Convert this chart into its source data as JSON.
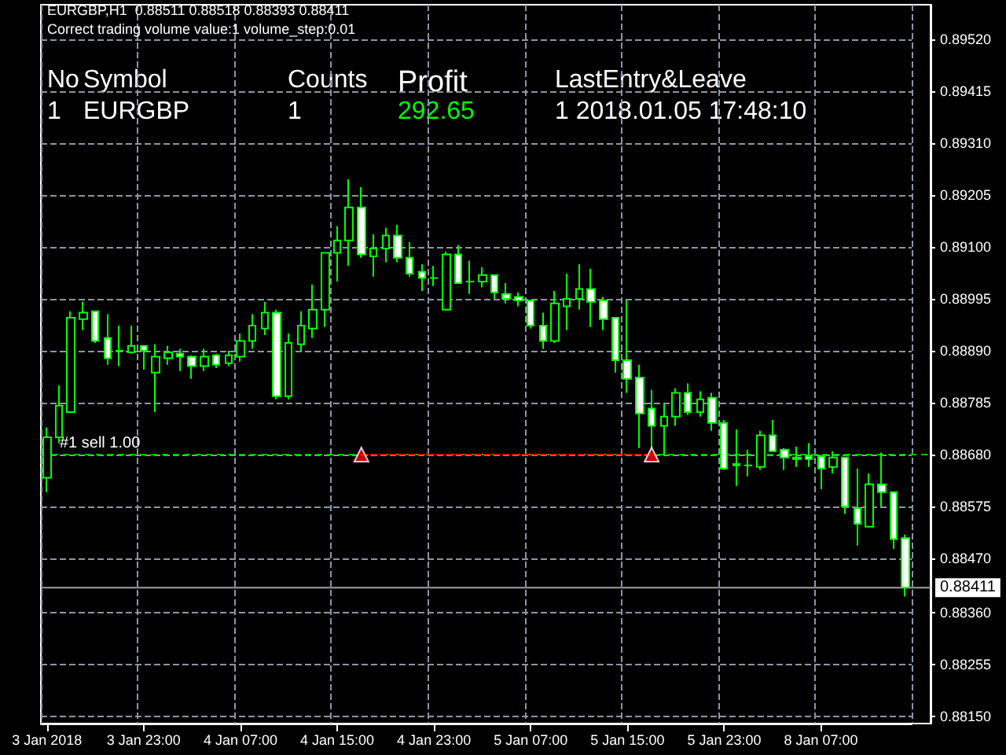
{
  "chart_data": {
    "type": "candlestick",
    "title": "EURGBP,H1  0.88511 0.88518 0.88393 0.88411",
    "subtitle": "Correct trading volume value:1 volume_step:0.01",
    "annotations": [
      "No",
      "Symbol",
      "Counts",
      "Profit",
      "LastEntry&Leave",
      "1",
      "EURGBP",
      "1",
      "292.65",
      "1 2018.01.05 17:48:10"
    ],
    "categories": [
      "3 Jan 2018",
      null,
      null,
      null,
      null,
      null,
      null,
      null,
      "3 Jan 23:00",
      null,
      null,
      null,
      null,
      null,
      null,
      null,
      "4 Jan 07:00",
      null,
      null,
      null,
      null,
      null,
      null,
      null,
      "4 Jan 15:00",
      null,
      null,
      null,
      null,
      null,
      null,
      null,
      "4 Jan 23:00",
      null,
      null,
      null,
      null,
      null,
      null,
      null,
      "5 Jan 07:00",
      null,
      null,
      null,
      null,
      null,
      null,
      null,
      "5 Jan 15:00",
      null,
      null,
      null,
      null,
      null,
      null,
      null,
      "5 Jan 23:00",
      null,
      null,
      null,
      null,
      null,
      null,
      null,
      "8 Jan 07:00",
      null,
      null,
      null,
      null,
      null,
      null,
      null
    ],
    "series": [
      {
        "type": "candlestick",
        "color": "#00ff00",
        "ohlc": [
          [
            0.88633,
            0.88735,
            0.88604,
            0.88715
          ],
          [
            0.88715,
            0.8882,
            0.88703,
            0.88779
          ],
          [
            0.88766,
            0.8897,
            0.88766,
            0.88957
          ],
          [
            0.88954,
            0.88989,
            0.88932,
            0.88967
          ],
          [
            0.8897,
            0.8897,
            0.88906,
            0.8891
          ],
          [
            0.88916,
            0.88964,
            0.88862,
            0.88875
          ],
          [
            0.8889,
            0.88941,
            0.88859,
            0.8889
          ],
          [
            0.88887,
            0.88941,
            0.88884,
            0.889
          ],
          [
            0.889,
            0.889,
            0.88852,
            0.8889
          ],
          [
            0.88846,
            0.88903,
            0.88766,
            0.88878
          ],
          [
            0.88875,
            0.889,
            0.88862,
            0.88887
          ],
          [
            0.88884,
            0.88894,
            0.88849,
            0.88878
          ],
          [
            0.88878,
            0.88881,
            0.88833,
            0.88859
          ],
          [
            0.88859,
            0.88894,
            0.88849,
            0.88878
          ],
          [
            0.88881,
            0.88884,
            0.88855,
            0.88862
          ],
          [
            0.88865,
            0.8889,
            0.88859,
            0.88881
          ],
          [
            0.88878,
            0.88925,
            0.88868,
            0.8891
          ],
          [
            0.8891,
            0.88964,
            0.88894,
            0.88941
          ],
          [
            0.88935,
            0.88989,
            0.88922,
            0.88967
          ],
          [
            0.88967,
            0.88973,
            0.88792,
            0.88798
          ],
          [
            0.88798,
            0.88925,
            0.88792,
            0.88906
          ],
          [
            0.88903,
            0.8897,
            0.88887,
            0.88941
          ],
          [
            0.88935,
            0.89024,
            0.88916,
            0.88973
          ],
          [
            0.88973,
            0.89088,
            0.88938,
            0.89088
          ],
          [
            0.89088,
            0.89142,
            0.8903,
            0.89113
          ],
          [
            0.89113,
            0.89237,
            0.89062,
            0.8918
          ],
          [
            0.8918,
            0.89221,
            0.89078,
            0.89085
          ],
          [
            0.89081,
            0.89126,
            0.8904,
            0.89097
          ],
          [
            0.89097,
            0.89139,
            0.89069,
            0.89123
          ],
          [
            0.89123,
            0.89145,
            0.89069,
            0.89078
          ],
          [
            0.89078,
            0.8911,
            0.8904,
            0.89046
          ],
          [
            0.8905,
            0.89065,
            0.89011,
            0.89037
          ],
          [
            0.89037,
            0.89062,
            0.89021,
            0.89037
          ],
          [
            0.88973,
            0.89091,
            0.88973,
            0.89085
          ],
          [
            0.89085,
            0.89104,
            0.89027,
            0.89027
          ],
          [
            0.8903,
            0.89072,
            0.89005,
            0.8903
          ],
          [
            0.8903,
            0.89059,
            0.89018,
            0.89043
          ],
          [
            0.89043,
            0.89043,
            0.88995,
            0.89008
          ],
          [
            0.89005,
            0.89027,
            0.88986,
            0.88995
          ],
          [
            0.88999,
            0.89008,
            0.8898,
            0.88992
          ],
          [
            0.88992,
            0.88992,
            0.88935,
            0.88941
          ],
          [
            0.88941,
            0.88967,
            0.88894,
            0.8891
          ],
          [
            0.8891,
            0.89011,
            0.88906,
            0.88986
          ],
          [
            0.8898,
            0.89046,
            0.88932,
            0.88995
          ],
          [
            0.88995,
            0.89065,
            0.88973,
            0.89015
          ],
          [
            0.89015,
            0.89056,
            0.88938,
            0.88989
          ],
          [
            0.88992,
            0.88999,
            0.88932,
            0.88954
          ],
          [
            0.88957,
            0.88957,
            0.88846,
            0.88871
          ],
          [
            0.88871,
            0.88992,
            0.88805,
            0.88833
          ],
          [
            0.88836,
            0.88862,
            0.88693,
            0.88763
          ],
          [
            0.88773,
            0.88811,
            0.88693,
            0.88738
          ],
          [
            0.88738,
            0.88782,
            0.88677,
            0.88757
          ],
          [
            0.88757,
            0.88814,
            0.88738,
            0.88805
          ],
          [
            0.88805,
            0.88824,
            0.8876,
            0.88766
          ],
          [
            0.88766,
            0.88808,
            0.88757,
            0.88792
          ],
          [
            0.88795,
            0.88805,
            0.88728,
            0.88744
          ],
          [
            0.88744,
            0.8875,
            0.88649,
            0.88652
          ],
          [
            0.88661,
            0.88731,
            0.88617,
            0.88658
          ],
          [
            0.88658,
            0.8869,
            0.88636,
            0.88658
          ],
          [
            0.88655,
            0.88728,
            0.88649,
            0.88719
          ],
          [
            0.88719,
            0.8875,
            0.88687,
            0.88687
          ],
          [
            0.8869,
            0.88693,
            0.88649,
            0.88674
          ],
          [
            0.88674,
            0.88696,
            0.88655,
            0.88671
          ],
          [
            0.88677,
            0.88703,
            0.88655,
            0.88671
          ],
          [
            0.88677,
            0.88677,
            0.8861,
            0.88652
          ],
          [
            0.88655,
            0.88687,
            0.88642,
            0.88674
          ],
          [
            0.88674,
            0.88674,
            0.8856,
            0.88575
          ],
          [
            0.88572,
            0.88652,
            0.88496,
            0.8854
          ],
          [
            0.88534,
            0.88642,
            0.88534,
            0.8862
          ],
          [
            0.8862,
            0.88684,
            0.88575,
            0.88604
          ],
          [
            0.88604,
            0.88604,
            0.88489,
            0.88509
          ],
          [
            0.88511,
            0.88518,
            0.88393,
            0.88411
          ]
        ]
      },
      {
        "type": "line",
        "color": "#ff0000",
        "line_style": "dashed",
        "marker": "none",
        "values": [
          null,
          null,
          null,
          null,
          null,
          null,
          null,
          null,
          null,
          null,
          null,
          null,
          null,
          null,
          null,
          null,
          null,
          null,
          null,
          null,
          null,
          null,
          null,
          null,
          null,
          null,
          0.8868,
          0.8868,
          0.8868,
          0.8868,
          0.8868,
          0.8868,
          0.8868,
          0.8868,
          0.8868,
          0.8868,
          0.8868,
          0.8868,
          0.8868,
          0.8868,
          0.8868,
          0.8868,
          0.8868,
          0.8868,
          0.8868,
          0.8868,
          0.8868,
          0.8868,
          0.8868,
          0.8868,
          0.8868,
          null,
          null,
          null,
          null,
          null,
          null,
          null,
          null,
          null,
          null,
          null,
          null,
          null,
          null,
          null,
          null,
          null,
          null,
          null,
          null,
          null
        ]
      },
      {
        "type": "scatter",
        "color": "#ff0000",
        "marker": "triangle",
        "values": [
          null,
          null,
          null,
          null,
          null,
          null,
          null,
          null,
          null,
          null,
          null,
          null,
          null,
          null,
          null,
          null,
          null,
          null,
          null,
          null,
          null,
          null,
          null,
          null,
          null,
          null,
          0.8868,
          null,
          null,
          null,
          null,
          null,
          null,
          null,
          null,
          null,
          null,
          null,
          null,
          null,
          null,
          null,
          null,
          null,
          null,
          null,
          null,
          null,
          null,
          null,
          0.8868,
          null,
          null,
          null,
          null,
          null,
          null,
          null,
          null,
          null,
          null,
          null,
          null,
          null,
          null,
          null,
          null,
          null,
          null,
          null,
          null,
          null
        ]
      }
    ],
    "ylim": [
      0.88136,
      0.8959
    ],
    "yticks": [
      {
        "value": 0.8952,
        "label": "0.89520"
      },
      {
        "value": 0.89415,
        "label": "0.89415"
      },
      {
        "value": 0.8931,
        "label": "0.89310"
      },
      {
        "value": 0.89205,
        "label": "0.89205"
      },
      {
        "value": 0.891,
        "label": "0.89100"
      },
      {
        "value": 0.88995,
        "label": "0.88995"
      },
      {
        "value": 0.8889,
        "label": "0.88890"
      },
      {
        "value": 0.88785,
        "label": "0.88785"
      },
      {
        "value": 0.8868,
        "label": "0.88680"
      },
      {
        "value": 0.88575,
        "label": "0.88575"
      },
      {
        "value": 0.8847,
        "label": "0.88470"
      },
      {
        "value": 0.8836,
        "label": "0.88360"
      },
      {
        "value": 0.88255,
        "label": "0.88255"
      },
      {
        "value": 0.8815,
        "label": "0.88150"
      }
    ],
    "ref_lines": [
      {
        "axis": "y",
        "value": 0.8868,
        "label": "#1 sell 1.00",
        "color": "#00c000",
        "line_style": "dashed"
      },
      {
        "axis": "y",
        "value": 0.88411,
        "label": "0.88411",
        "color": "#a0a0a0",
        "line_style": "solid"
      }
    ],
    "grid": true
  }
}
